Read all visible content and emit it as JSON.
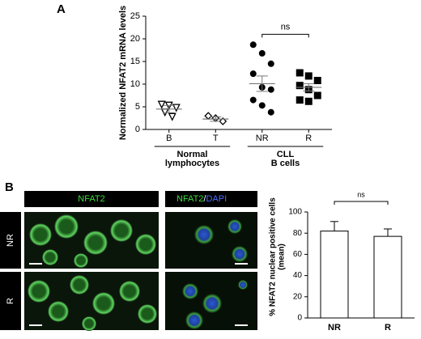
{
  "panels": {
    "a": "A",
    "b": "B"
  },
  "images": {
    "header_left": "NFAT2",
    "header_right_1": "NFAT2",
    "header_right_2": "/",
    "header_right_3": "DAPI",
    "rows": [
      "NR",
      "R"
    ]
  },
  "chart_data": [
    {
      "type": "dotplot",
      "ylabel": "Normalized NFAT2 mRNA levels",
      "categories": [
        "B",
        "T",
        "NR",
        "R"
      ],
      "markers": [
        "triangle-down",
        "diamond",
        "circle",
        "square"
      ],
      "points": [
        [
          5.5,
          5.3,
          4.8,
          3.8,
          2.8
        ],
        [
          3.0,
          2.5,
          1.8
        ],
        [
          18.7,
          16.8,
          14.5,
          12.3,
          9.3,
          8.8,
          6.5,
          5.3,
          3.8
        ],
        [
          12.5,
          11.8,
          10.8,
          9.7,
          8.8,
          7.5,
          6.5,
          6.2
        ]
      ],
      "means": [
        4.5,
        2.3,
        10.1,
        9.3
      ],
      "sem": [
        0.8,
        0.5,
        1.7,
        0.8
      ],
      "groups": [
        {
          "label": [
            "Normal",
            "lymphocytes"
          ],
          "span": [
            0,
            1
          ]
        },
        {
          "label": [
            "CLL",
            "B cells"
          ],
          "span": [
            2,
            3
          ]
        }
      ],
      "annotation": "ns",
      "annotation_span": [
        2,
        3
      ],
      "ylim": [
        0,
        25
      ],
      "yticks": [
        0,
        5,
        10,
        15,
        20,
        25
      ],
      "color": "#000000"
    },
    {
      "type": "bar",
      "ylabel": [
        "% NFAT2 nuclear positive cells",
        "(mean)"
      ],
      "categories": [
        "NR",
        "R"
      ],
      "values": [
        82,
        77
      ],
      "errors": [
        9,
        7
      ],
      "annotation": "ns",
      "ylim": [
        0,
        100
      ],
      "yticks": [
        0,
        20,
        40,
        60,
        80,
        100
      ],
      "color": "#ffffff"
    }
  ]
}
